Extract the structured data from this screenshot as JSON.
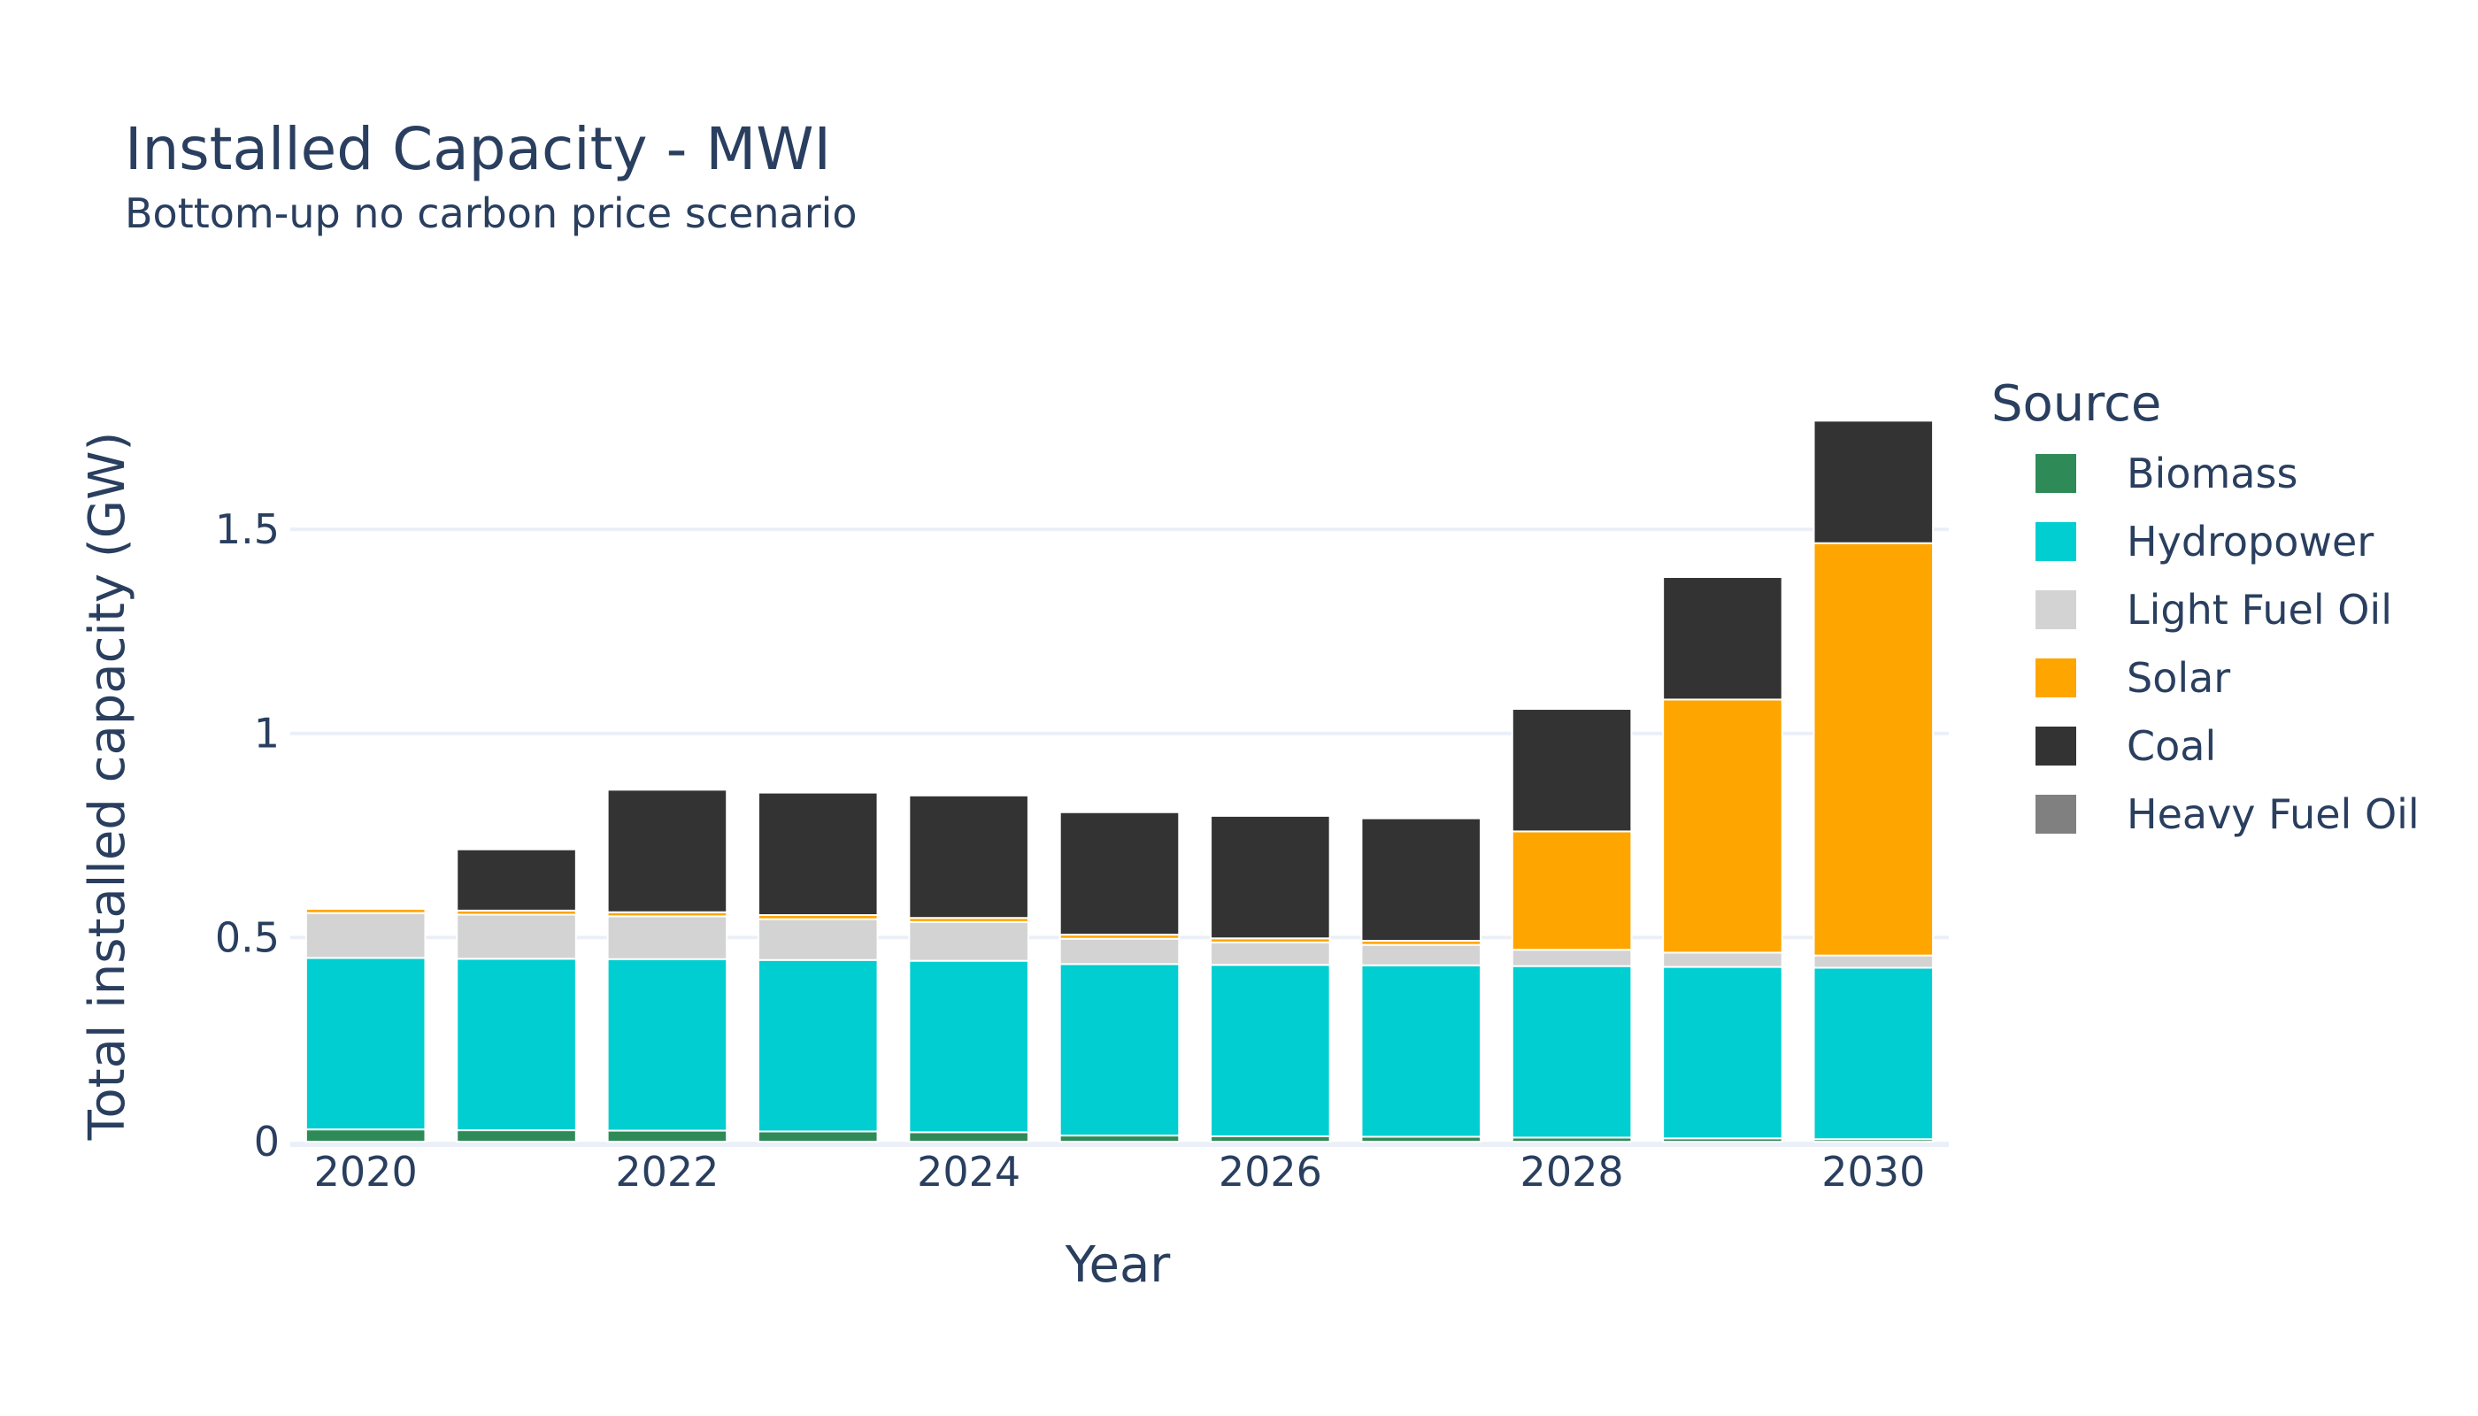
{
  "chart_data": {
    "type": "bar",
    "stacked": true,
    "title": "Installed Capacity - MWI",
    "subtitle": "Bottom-up no carbon price scenario",
    "xlabel": "Year",
    "ylabel": "Total installed capacity (GW)",
    "x": [
      2020,
      2021,
      2022,
      2023,
      2024,
      2025,
      2026,
      2027,
      2028,
      2029,
      2030
    ],
    "x_ticks": [
      "2020",
      "2022",
      "2024",
      "2026",
      "2028",
      "2030"
    ],
    "y_ticks": [
      0,
      0.5,
      1,
      1.5
    ],
    "y_tick_labels": [
      "0",
      "0.5",
      "1",
      "1.5"
    ],
    "ylim": [
      0,
      1.86
    ],
    "grid": true,
    "legend_title": "Source",
    "legend_position": "right",
    "series": [
      {
        "name": "Biomass",
        "color": "#2e8b57",
        "values": [
          0.03,
          0.028,
          0.027,
          0.025,
          0.023,
          0.015,
          0.013,
          0.012,
          0.01,
          0.008,
          0.006
        ]
      },
      {
        "name": "Hydropower",
        "color": "#00ced1",
        "values": [
          0.42,
          0.42,
          0.42,
          0.42,
          0.42,
          0.42,
          0.42,
          0.42,
          0.42,
          0.42,
          0.42
        ]
      },
      {
        "name": "Light Fuel Oil",
        "color": "#d3d3d3",
        "values": [
          0.11,
          0.108,
          0.105,
          0.1,
          0.095,
          0.062,
          0.055,
          0.05,
          0.04,
          0.035,
          0.03
        ]
      },
      {
        "name": "Solar",
        "color": "#ffa500",
        "values": [
          0.01,
          0.01,
          0.01,
          0.01,
          0.01,
          0.01,
          0.01,
          0.01,
          0.29,
          0.62,
          1.01
        ]
      },
      {
        "name": "Coal",
        "color": "#333333",
        "values": [
          0,
          0.15,
          0.3,
          0.3,
          0.3,
          0.3,
          0.3,
          0.3,
          0.3,
          0.3,
          0.3
        ]
      },
      {
        "name": "Heavy Fuel Oil",
        "color": "#808080",
        "values": [
          0,
          0,
          0,
          0,
          0,
          0,
          0,
          0,
          0,
          0,
          0
        ]
      }
    ]
  }
}
